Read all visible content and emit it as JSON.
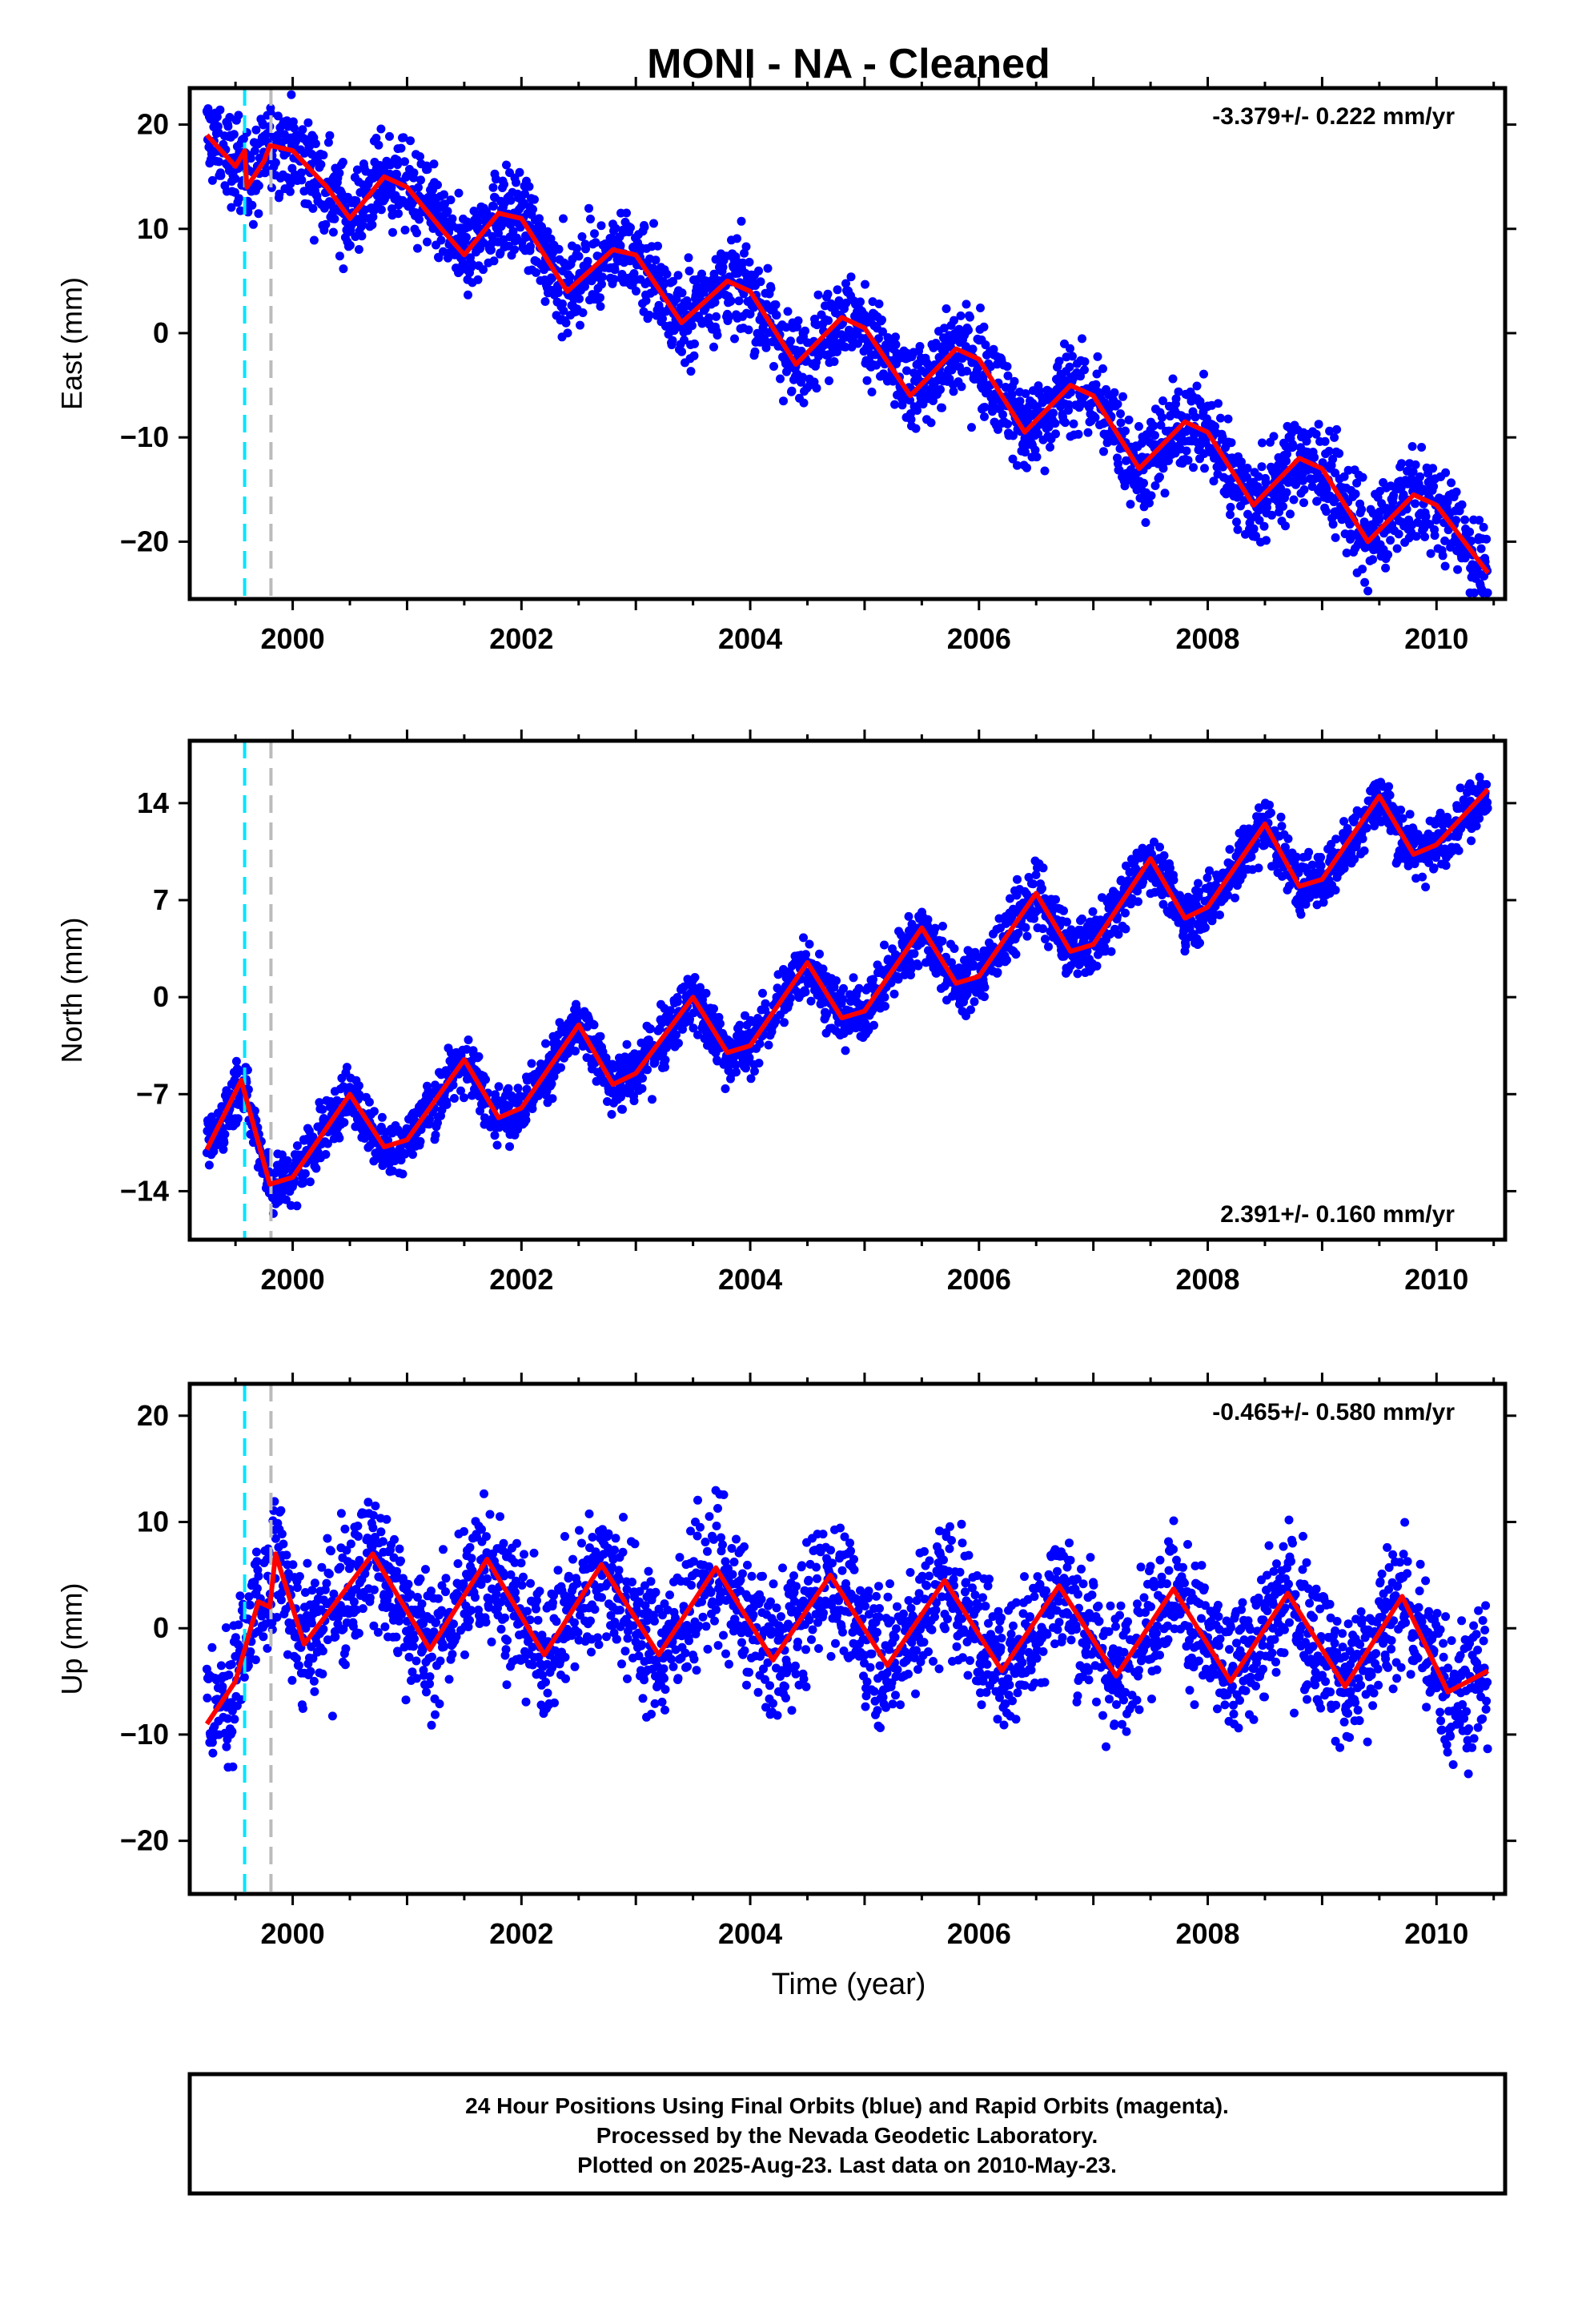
{
  "chart_data": {
    "type": "scatter",
    "title": "MONI  - NA - Cleaned",
    "xlabel": "Time (year)",
    "xlim": [
      1999.1,
      2010.6
    ],
    "x_ticks": [
      2000,
      2002,
      2004,
      2006,
      2008,
      2010
    ],
    "vlines": [
      {
        "x": 1999.58,
        "color": "#00e5ff",
        "style": "dashed"
      },
      {
        "x": 1999.81,
        "color": "#bbbbbb",
        "style": "dashed"
      }
    ],
    "point_color": "#0000ff",
    "model_color": "#ff0000",
    "panels": [
      {
        "name": "east",
        "ylabel": "East (mm)",
        "ylim": [
          -25.5,
          23.5
        ],
        "y_ticks": [
          20,
          10,
          0,
          -10,
          -20
        ],
        "rate_label": "-3.379+/- 0.222 mm/yr",
        "rate_position": "top-right",
        "model": {
          "x": [
            1999.25,
            1999.5,
            1999.58,
            1999.6,
            1999.75,
            1999.8,
            2000.0,
            2000.3,
            2000.5,
            2000.8,
            2001.0,
            2001.3,
            2001.5,
            2001.8,
            2002.0,
            2002.4,
            2002.8,
            2003.0,
            2003.4,
            2003.8,
            2004.0,
            2004.4,
            2004.8,
            2005.0,
            2005.4,
            2005.8,
            2006.0,
            2006.4,
            2006.8,
            2007.0,
            2007.4,
            2007.8,
            2008.0,
            2008.4,
            2008.8,
            2009.0,
            2009.4,
            2009.8,
            2010.0,
            2010.45
          ],
          "y": [
            19,
            16,
            17.5,
            14,
            16.5,
            18,
            17.5,
            14,
            11,
            15,
            14,
            10,
            7.5,
            11.5,
            11,
            4,
            8,
            7.5,
            1,
            5,
            4,
            -3,
            1.5,
            0.5,
            -6,
            -1.5,
            -2.5,
            -9.5,
            -5,
            -6,
            -13,
            -8.5,
            -9.5,
            -16.5,
            -12,
            -13,
            -20,
            -15.5,
            -16.5,
            -23
          ]
        },
        "scatter_amplitude": 4
      },
      {
        "name": "north",
        "ylabel": "North (mm)",
        "ylim": [
          -17.5,
          18.5
        ],
        "y_ticks": [
          14,
          7,
          0,
          -7,
          -14
        ],
        "rate_label": "2.391+/- 0.160 mm/yr",
        "rate_position": "bottom-right",
        "model": {
          "x": [
            1999.25,
            1999.55,
            1999.8,
            2000.0,
            2000.5,
            2000.8,
            2001.0,
            2001.5,
            2001.8,
            2002.0,
            2002.5,
            2002.8,
            2003.0,
            2003.5,
            2003.8,
            2004.0,
            2004.5,
            2004.8,
            2005.0,
            2005.5,
            2005.8,
            2006.0,
            2006.5,
            2006.8,
            2007.0,
            2007.5,
            2007.8,
            2008.0,
            2008.5,
            2008.8,
            2009.0,
            2009.5,
            2009.8,
            2010.0,
            2010.45
          ],
          "y": [
            -11,
            -6,
            -13.5,
            -13,
            -7,
            -10.8,
            -10.3,
            -4.5,
            -8.7,
            -8,
            -2,
            -6.3,
            -5.5,
            0,
            -4,
            -3.5,
            2.5,
            -1.5,
            -1,
            5,
            1,
            1.5,
            7.5,
            3.3,
            3.8,
            10,
            5.7,
            6.5,
            12.5,
            8,
            8.5,
            14.5,
            10.3,
            11,
            15
          ]
        },
        "scatter_amplitude": 2
      },
      {
        "name": "up",
        "ylabel": "Up (mm)",
        "ylim": [
          -25,
          23
        ],
        "y_ticks": [
          20,
          10,
          0,
          -10,
          -20
        ],
        "rate_label": "-0.465+/- 0.580 mm/yr",
        "rate_position": "top-right",
        "model": {
          "x": [
            1999.25,
            1999.5,
            1999.7,
            1999.8,
            1999.85,
            2000.1,
            2000.7,
            2001.2,
            2001.7,
            2002.2,
            2002.7,
            2003.2,
            2003.7,
            2004.2,
            2004.7,
            2005.2,
            2005.7,
            2006.2,
            2006.7,
            2007.2,
            2007.7,
            2008.2,
            2008.7,
            2009.2,
            2009.7,
            2010.1,
            2010.45
          ],
          "y": [
            -9,
            -5,
            2.5,
            2,
            7,
            -1.5,
            7,
            -2,
            6.5,
            -2.5,
            6,
            -2.5,
            5.7,
            -3,
            5,
            -3.5,
            4.5,
            -4,
            4,
            -4.5,
            3.7,
            -5,
            3.3,
            -5.5,
            3,
            -6,
            -4
          ]
        },
        "scatter_amplitude": 6
      }
    ]
  },
  "footer": {
    "line1": "24 Hour Positions Using Final Orbits (blue) and Rapid Orbits (magenta).",
    "line2": "Processed by the Nevada Geodetic Laboratory.",
    "line3": "Plotted on 2025-Aug-23. Last data on 2010-May-23."
  }
}
